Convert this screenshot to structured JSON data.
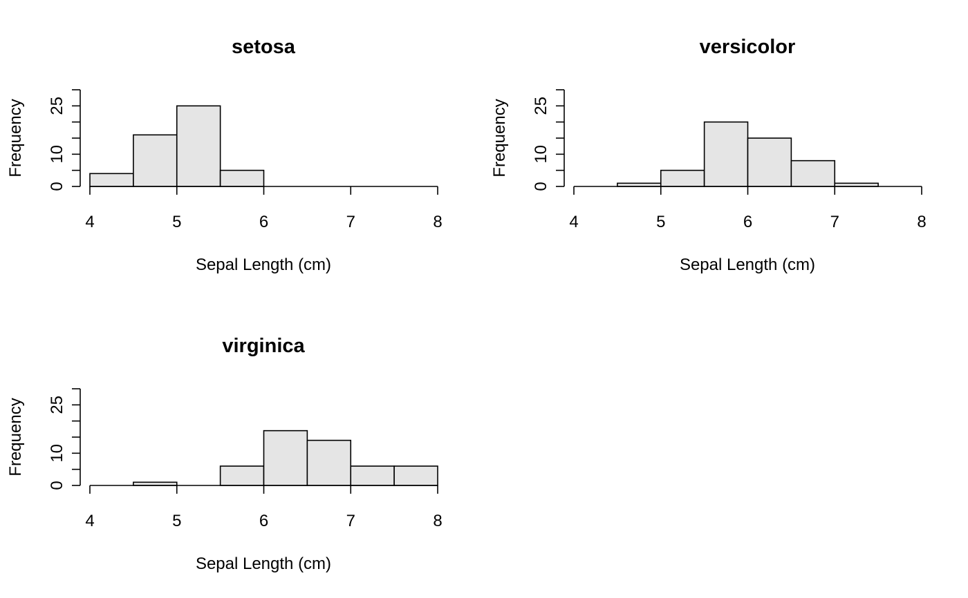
{
  "colors": {
    "bar_fill": "#e5e5e5",
    "bar_stroke": "#000000",
    "background": "#ffffff"
  },
  "chart_data": [
    {
      "type": "bar",
      "title": "setosa",
      "xlabel": "Sepal Length (cm)",
      "ylabel": "Frequency",
      "xlim": [
        4,
        8
      ],
      "ylim": [
        0,
        30
      ],
      "xticks": [
        4,
        5,
        6,
        7,
        8
      ],
      "yticks": [
        0,
        10,
        25
      ],
      "ytick_marks": [
        0,
        5,
        10,
        15,
        20,
        25,
        30
      ],
      "bins": [
        [
          4.0,
          4.5
        ],
        [
          4.5,
          5.0
        ],
        [
          5.0,
          5.5
        ],
        [
          5.5,
          6.0
        ],
        [
          6.0,
          6.5
        ],
        [
          6.5,
          7.0
        ],
        [
          7.0,
          7.5
        ],
        [
          7.5,
          8.0
        ]
      ],
      "values": [
        4,
        16,
        25,
        5,
        0,
        0,
        0,
        0
      ]
    },
    {
      "type": "bar",
      "title": "versicolor",
      "xlabel": "Sepal Length (cm)",
      "ylabel": "Frequency",
      "xlim": [
        4,
        8
      ],
      "ylim": [
        0,
        30
      ],
      "xticks": [
        4,
        5,
        6,
        7,
        8
      ],
      "yticks": [
        0,
        10,
        25
      ],
      "ytick_marks": [
        0,
        5,
        10,
        15,
        20,
        25,
        30
      ],
      "bins": [
        [
          4.0,
          4.5
        ],
        [
          4.5,
          5.0
        ],
        [
          5.0,
          5.5
        ],
        [
          5.5,
          6.0
        ],
        [
          6.0,
          6.5
        ],
        [
          6.5,
          7.0
        ],
        [
          7.0,
          7.5
        ],
        [
          7.5,
          8.0
        ]
      ],
      "values": [
        0,
        1,
        5,
        20,
        15,
        8,
        1,
        0
      ]
    },
    {
      "type": "bar",
      "title": "virginica",
      "xlabel": "Sepal Length (cm)",
      "ylabel": "Frequency",
      "xlim": [
        4,
        8
      ],
      "ylim": [
        0,
        30
      ],
      "xticks": [
        4,
        5,
        6,
        7,
        8
      ],
      "yticks": [
        0,
        10,
        25
      ],
      "ytick_marks": [
        0,
        5,
        10,
        15,
        20,
        25,
        30
      ],
      "bins": [
        [
          4.0,
          4.5
        ],
        [
          4.5,
          5.0
        ],
        [
          5.0,
          5.5
        ],
        [
          5.5,
          6.0
        ],
        [
          6.0,
          6.5
        ],
        [
          6.5,
          7.0
        ],
        [
          7.0,
          7.5
        ],
        [
          7.5,
          8.0
        ]
      ],
      "values": [
        0,
        1,
        0,
        6,
        17,
        14,
        6,
        6
      ]
    }
  ]
}
